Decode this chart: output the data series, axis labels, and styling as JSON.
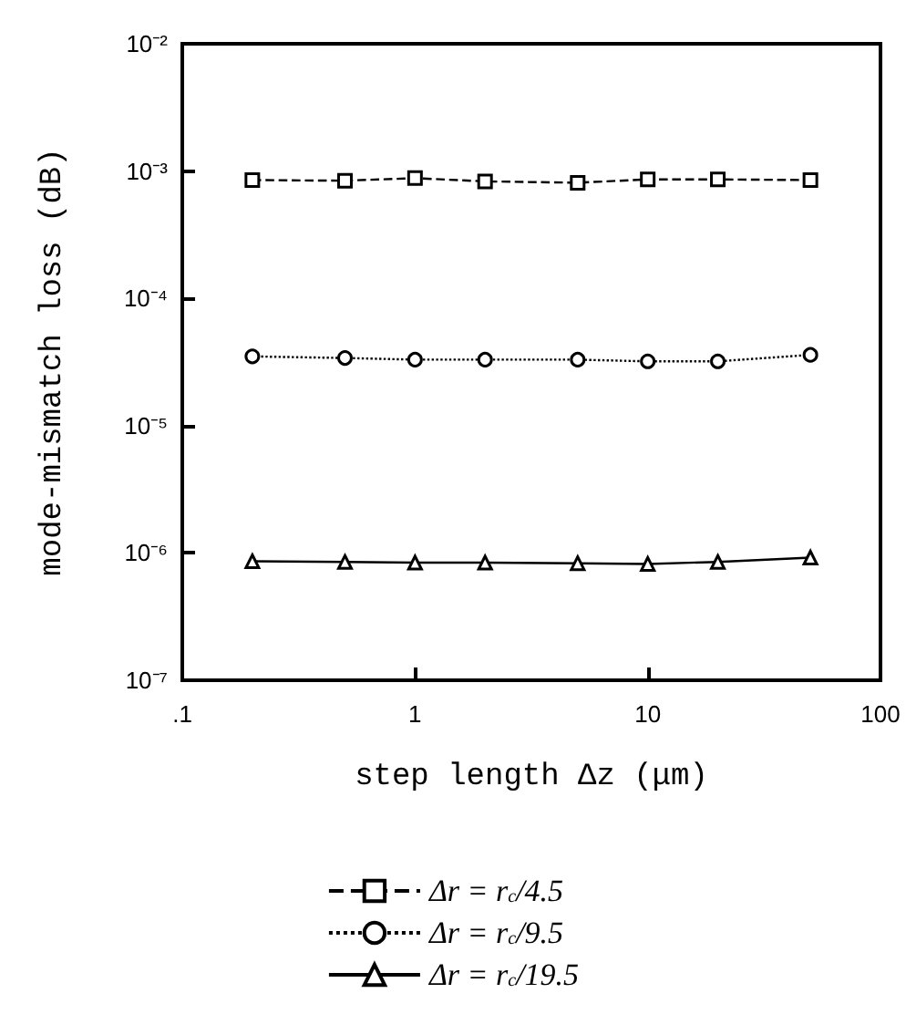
{
  "chart_data": {
    "type": "line",
    "xlabel": "step length Δz (μm)",
    "ylabel": "mode-mismatch loss (dB)",
    "log": "xy",
    "x": [
      0.2,
      0.5,
      1,
      2,
      5,
      10,
      20,
      50
    ],
    "xlim": [
      0.1,
      100
    ],
    "xticks": [
      {
        "value": 0.1,
        "label": ".1"
      },
      1,
      10,
      100
    ],
    "ylim": [
      1e-07,
      0.01
    ],
    "yticks": [
      {
        "value": 1e-07,
        "label": "10⁻⁷"
      },
      {
        "value": 1e-06,
        "label": "10⁻⁶"
      },
      {
        "value": 1e-05,
        "label": "10⁻⁵"
      },
      {
        "value": 0.0001,
        "label": "10⁻⁴"
      },
      {
        "value": 0.001,
        "label": "10⁻³"
      },
      {
        "value": 0.01,
        "label": "10⁻²"
      }
    ],
    "grid": false,
    "legend": "bottom",
    "series": [
      {
        "name": "Δr = r$_{c}$/4.5",
        "color": "#000000",
        "marker": "square",
        "line_style": "dashed",
        "values": [
          0.00085,
          0.00084,
          0.00088,
          0.00083,
          0.00081,
          0.00086,
          0.00086,
          0.00085
        ]
      },
      {
        "name": "Δr = r$_{c}$/9.5",
        "color": "#000000",
        "marker": "circle",
        "line_style": "dotted",
        "values": [
          3.5e-05,
          3.4e-05,
          3.3e-05,
          3.3e-05,
          3.3e-05,
          3.2e-05,
          3.2e-05,
          3.6e-05
        ]
      },
      {
        "name": "Δr = r$_{c}$/19.5",
        "color": "#000000",
        "marker": "triangle",
        "line_style": "solid",
        "values": [
          8.6e-07,
          8.5e-07,
          8.4e-07,
          8.4e-07,
          8.3e-07,
          8.2e-07,
          8.5e-07,
          9.2e-07
        ]
      }
    ]
  }
}
